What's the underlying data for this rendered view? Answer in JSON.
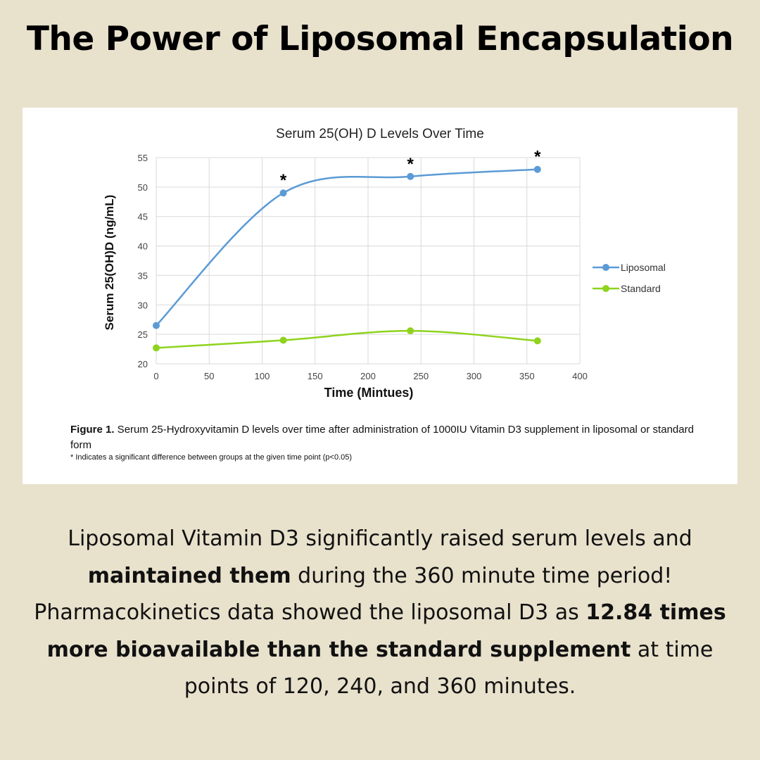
{
  "headline": "The Power of Liposomal Encapsulation",
  "figure": {
    "caption_label": "Figure 1.",
    "caption_text": " Serum 25-Hydroxyvitamin D levels over time after administration of 1000IU Vitamin D3 supplement in liposomal or standard form",
    "footnote": "* Indicates a significant difference between groups at the given time point (p<0.05)"
  },
  "chart_data": {
    "type": "line",
    "title": "Serum 25(OH) D Levels Over Time",
    "xlabel": "Time (Mintues)",
    "ylabel": "Serum 25(OH)D (ng/mL)",
    "xlim": [
      0,
      400
    ],
    "ylim": [
      20,
      55
    ],
    "xticks": [
      0,
      50,
      100,
      150,
      200,
      250,
      300,
      350,
      400
    ],
    "yticks": [
      20,
      25,
      30,
      35,
      40,
      45,
      50,
      55
    ],
    "grid": true,
    "legend_position": "right",
    "series": [
      {
        "name": "Liposomal",
        "color": "#5b9bd5",
        "x": [
          0,
          120,
          240,
          360
        ],
        "y": [
          26.5,
          49,
          51.8,
          53
        ],
        "significant_marker": "*",
        "significant_at": [
          120,
          240,
          360
        ]
      },
      {
        "name": "Standard",
        "color": "#8fd31d",
        "x": [
          0,
          120,
          240,
          360
        ],
        "y": [
          22.7,
          24,
          25.6,
          23.9
        ]
      }
    ]
  },
  "summary": {
    "part1": "Liposomal Vitamin D3 significantly raised serum levels and ",
    "bold1": "maintained them",
    "part2": " during the 360 minute time period! Pharmacokinetics data showed the liposomal D3 as ",
    "bold2": "12.84 times more bioavailable than the standard supplement",
    "part3": " at time points of 120, 240, and 360 minutes."
  }
}
